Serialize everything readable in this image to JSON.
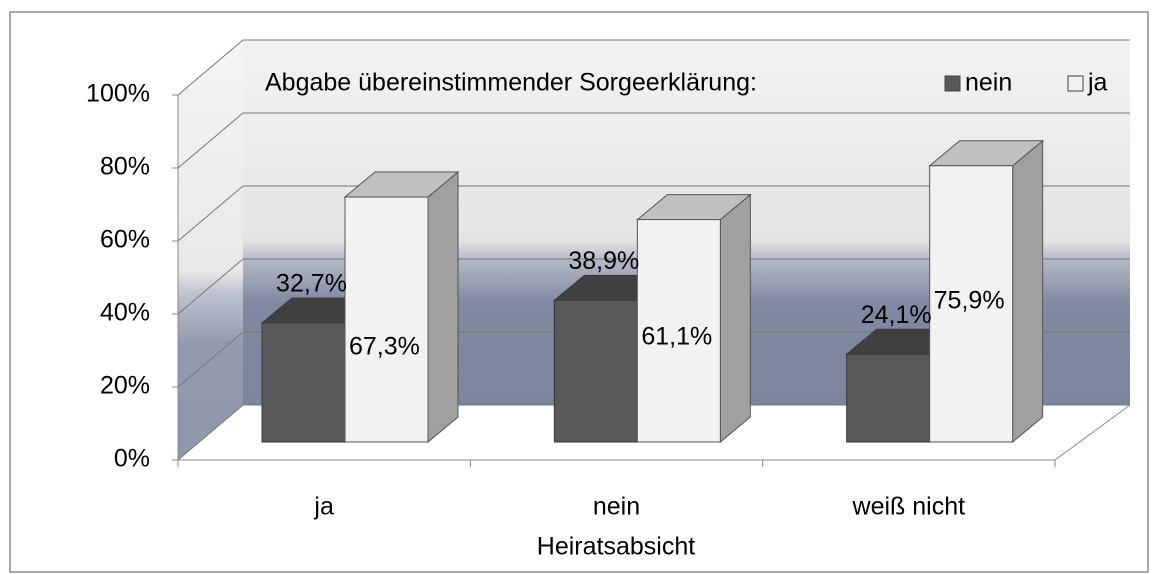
{
  "chart_data": {
    "type": "bar3d",
    "legend_title": "Abgabe übereinstimmender Sorgeerklärung:",
    "x_label": "Heiratsabsicht",
    "categories": [
      "ja",
      "nein",
      "weiß nicht"
    ],
    "series": [
      {
        "name": "nein",
        "color": "#595959",
        "values": [
          32.7,
          38.9,
          24.1
        ],
        "value_labels": [
          "32,7%",
          "38,9%",
          "24,1%"
        ]
      },
      {
        "name": "ja",
        "color": "#f2f2f2",
        "values": [
          67.3,
          61.1,
          75.9
        ],
        "value_labels": [
          "67,3%",
          "61,1%",
          "75,9%"
        ]
      }
    ],
    "ylim": [
      0,
      100
    ],
    "yticks": [
      {
        "value": 0,
        "label": "0%"
      },
      {
        "value": 20,
        "label": "20%"
      },
      {
        "value": 40,
        "label": "40%"
      },
      {
        "value": 60,
        "label": "60%"
      },
      {
        "value": 80,
        "label": "80%"
      },
      {
        "value": 100,
        "label": "100%"
      }
    ],
    "grid": true,
    "legend": "top"
  }
}
